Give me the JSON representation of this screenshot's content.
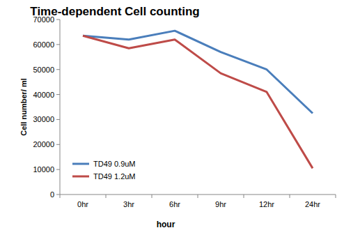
{
  "chart_data": {
    "type": "line",
    "title": "Time-dependent Cell counting",
    "x_label": "hour",
    "y_label": "Cell number/ ml",
    "categories": [
      "0hr",
      "3hr",
      "6hr",
      "9hr",
      "12hr",
      "24hr"
    ],
    "series": [
      {
        "name": "TD49 0.9uM",
        "color": "#4a7ebb",
        "values": [
          63500,
          62000,
          65500,
          57000,
          50000,
          32500
        ]
      },
      {
        "name": "TD49 1.2uM",
        "color": "#be4b48",
        "values": [
          63500,
          58500,
          62000,
          48500,
          41000,
          10500
        ]
      }
    ],
    "ylim": [
      0,
      70000
    ],
    "yticks": [
      0,
      10000,
      20000,
      30000,
      40000,
      50000,
      60000,
      70000
    ],
    "grid": false,
    "legend": "bottom-left"
  }
}
